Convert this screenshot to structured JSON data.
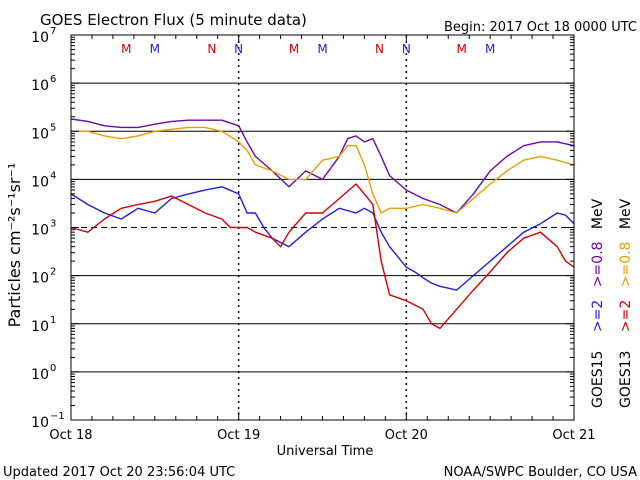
{
  "header": {
    "title": "GOES Electron Flux (5 minute data)",
    "begin": "Begin: 2017 Oct 18 0000 UTC"
  },
  "footer": {
    "updated": "Updated 2017 Oct 20 23:56:04 UTC",
    "credit": "NOAA/SWPC Boulder, CO USA"
  },
  "axes": {
    "xlabel": "Universal Time",
    "ylabel": "Particles cm⁻²s⁻¹sr⁻¹",
    "xticks": [
      "Oct 18",
      "Oct 19",
      "Oct 20",
      "Oct 21"
    ],
    "yticks": [
      {
        "base": "10",
        "exp": "7"
      },
      {
        "base": "10",
        "exp": "6"
      },
      {
        "base": "10",
        "exp": "5"
      },
      {
        "base": "10",
        "exp": "4"
      },
      {
        "base": "10",
        "exp": "3"
      },
      {
        "base": "10",
        "exp": "2"
      },
      {
        "base": "10",
        "exp": "1"
      },
      {
        "base": "10",
        "exp": "0"
      },
      {
        "base": "10",
        "exp": "−1"
      }
    ]
  },
  "markers": [
    {
      "label": "M",
      "color": "#d40000",
      "day": 0.33
    },
    {
      "label": "M",
      "color": "#1f1fd6",
      "day": 0.5
    },
    {
      "label": "N",
      "color": "#d40000",
      "day": 0.84
    },
    {
      "label": "N",
      "color": "#1f1fd6",
      "day": 1.0
    },
    {
      "label": "M",
      "color": "#d40000",
      "day": 1.33
    },
    {
      "label": "M",
      "color": "#1f1fd6",
      "day": 1.5
    },
    {
      "label": "N",
      "color": "#d40000",
      "day": 1.84
    },
    {
      "label": "N",
      "color": "#1f1fd6",
      "day": 2.0
    },
    {
      "label": "M",
      "color": "#d40000",
      "day": 2.33
    },
    {
      "label": "M",
      "color": "#1f1fd6",
      "day": 2.5
    }
  ],
  "legend": {
    "goes15": {
      "label": "GOES15",
      "items": [
        {
          "label": ">=2",
          "color": "#1f1fd6"
        },
        {
          "label": ">=0.8",
          "color": "#6a0aa0"
        },
        {
          "label": "MeV",
          "color": "#000000"
        }
      ]
    },
    "goes13": {
      "label": "GOES13",
      "items": [
        {
          "label": ">=2",
          "color": "#d40000"
        },
        {
          "label": ">=0.8",
          "color": "#e8a000"
        },
        {
          "label": "MeV",
          "color": "#000000"
        }
      ]
    }
  },
  "chart_data": {
    "type": "line",
    "title": "GOES Electron Flux (5 minute data)",
    "xlabel": "Universal Time",
    "ylabel": "Particles cm⁻²s⁻¹sr⁻¹",
    "x_unit": "days since 2017 Oct 18 0000 UTC",
    "xlim": [
      0,
      3
    ],
    "ylim_log10": [
      -1,
      7
    ],
    "yscale": "log",
    "threshold_line": 1000,
    "series": [
      {
        "name": "GOES15 >=2 MeV",
        "color": "#1f1fd6",
        "points": [
          [
            0,
            5000
          ],
          [
            0.1,
            3000
          ],
          [
            0.2,
            2000
          ],
          [
            0.3,
            1500
          ],
          [
            0.4,
            2500
          ],
          [
            0.5,
            2000
          ],
          [
            0.6,
            4000
          ],
          [
            0.7,
            5000
          ],
          [
            0.8,
            6000
          ],
          [
            0.9,
            7000
          ],
          [
            1.0,
            5000
          ],
          [
            1.05,
            2000
          ],
          [
            1.1,
            2000
          ],
          [
            1.15,
            1000
          ],
          [
            1.2,
            600
          ],
          [
            1.3,
            400
          ],
          [
            1.4,
            800
          ],
          [
            1.5,
            1500
          ],
          [
            1.6,
            2500
          ],
          [
            1.7,
            2000
          ],
          [
            1.75,
            2500
          ],
          [
            1.8,
            2000
          ],
          [
            1.85,
            800
          ],
          [
            1.9,
            400
          ],
          [
            2.0,
            150
          ],
          [
            2.05,
            120
          ],
          [
            2.1,
            90
          ],
          [
            2.15,
            70
          ],
          [
            2.2,
            60
          ],
          [
            2.3,
            50
          ],
          [
            2.4,
            100
          ],
          [
            2.5,
            200
          ],
          [
            2.6,
            400
          ],
          [
            2.7,
            800
          ],
          [
            2.8,
            1200
          ],
          [
            2.9,
            2000
          ],
          [
            2.95,
            1800
          ],
          [
            3.0,
            1200
          ]
        ]
      },
      {
        "name": "GOES15 >=0.8 MeV",
        "color": "#6a0aa0",
        "points": [
          [
            0,
            180000
          ],
          [
            0.1,
            160000
          ],
          [
            0.2,
            130000
          ],
          [
            0.3,
            120000
          ],
          [
            0.4,
            120000
          ],
          [
            0.5,
            140000
          ],
          [
            0.6,
            160000
          ],
          [
            0.7,
            170000
          ],
          [
            0.8,
            170000
          ],
          [
            0.9,
            170000
          ],
          [
            1.0,
            130000
          ],
          [
            1.05,
            60000
          ],
          [
            1.1,
            30000
          ],
          [
            1.2,
            15000
          ],
          [
            1.3,
            7000
          ],
          [
            1.4,
            15000
          ],
          [
            1.5,
            10000
          ],
          [
            1.6,
            30000
          ],
          [
            1.65,
            70000
          ],
          [
            1.7,
            80000
          ],
          [
            1.75,
            60000
          ],
          [
            1.8,
            70000
          ],
          [
            1.85,
            30000
          ],
          [
            1.9,
            12000
          ],
          [
            2.0,
            6000
          ],
          [
            2.1,
            4000
          ],
          [
            2.2,
            3000
          ],
          [
            2.3,
            2000
          ],
          [
            2.4,
            5000
          ],
          [
            2.5,
            15000
          ],
          [
            2.6,
            30000
          ],
          [
            2.7,
            50000
          ],
          [
            2.8,
            60000
          ],
          [
            2.9,
            60000
          ],
          [
            3.0,
            50000
          ]
        ]
      },
      {
        "name": "GOES13 >=2 MeV",
        "color": "#d40000",
        "points": [
          [
            0,
            1000
          ],
          [
            0.1,
            800
          ],
          [
            0.2,
            1500
          ],
          [
            0.3,
            2500
          ],
          [
            0.4,
            3000
          ],
          [
            0.5,
            3500
          ],
          [
            0.6,
            4500
          ],
          [
            0.7,
            3000
          ],
          [
            0.8,
            2000
          ],
          [
            0.9,
            1500
          ],
          [
            0.95,
            1000
          ],
          [
            1.0,
            1000
          ],
          [
            1.05,
            1000
          ],
          [
            1.1,
            800
          ],
          [
            1.2,
            600
          ],
          [
            1.25,
            400
          ],
          [
            1.3,
            800
          ],
          [
            1.4,
            2000
          ],
          [
            1.5,
            2000
          ],
          [
            1.6,
            4000
          ],
          [
            1.7,
            8000
          ],
          [
            1.75,
            5000
          ],
          [
            1.8,
            3000
          ],
          [
            1.85,
            200
          ],
          [
            1.9,
            40
          ],
          [
            2.0,
            30
          ],
          [
            2.1,
            20
          ],
          [
            2.15,
            10
          ],
          [
            2.2,
            8
          ],
          [
            2.3,
            20
          ],
          [
            2.4,
            50
          ],
          [
            2.5,
            120
          ],
          [
            2.6,
            300
          ],
          [
            2.7,
            600
          ],
          [
            2.8,
            800
          ],
          [
            2.9,
            400
          ],
          [
            2.95,
            200
          ],
          [
            3.0,
            150
          ]
        ]
      },
      {
        "name": "GOES13 >=0.8 MeV",
        "color": "#e8a000",
        "points": [
          [
            0,
            100000
          ],
          [
            0.1,
            100000
          ],
          [
            0.2,
            80000
          ],
          [
            0.3,
            70000
          ],
          [
            0.4,
            80000
          ],
          [
            0.5,
            100000
          ],
          [
            0.6,
            110000
          ],
          [
            0.7,
            120000
          ],
          [
            0.8,
            120000
          ],
          [
            0.9,
            100000
          ],
          [
            1.0,
            60000
          ],
          [
            1.05,
            40000
          ],
          [
            1.1,
            20000
          ],
          [
            1.2,
            15000
          ],
          [
            1.3,
            10000
          ],
          [
            1.4,
            10000
          ],
          [
            1.5,
            25000
          ],
          [
            1.6,
            30000
          ],
          [
            1.65,
            50000
          ],
          [
            1.7,
            50000
          ],
          [
            1.75,
            20000
          ],
          [
            1.8,
            5000
          ],
          [
            1.85,
            2000
          ],
          [
            1.9,
            2500
          ],
          [
            2.0,
            2500
          ],
          [
            2.1,
            3000
          ],
          [
            2.2,
            2500
          ],
          [
            2.3,
            2000
          ],
          [
            2.4,
            4000
          ],
          [
            2.5,
            8000
          ],
          [
            2.6,
            15000
          ],
          [
            2.7,
            25000
          ],
          [
            2.8,
            30000
          ],
          [
            2.9,
            25000
          ],
          [
            3.0,
            20000
          ]
        ]
      }
    ]
  }
}
